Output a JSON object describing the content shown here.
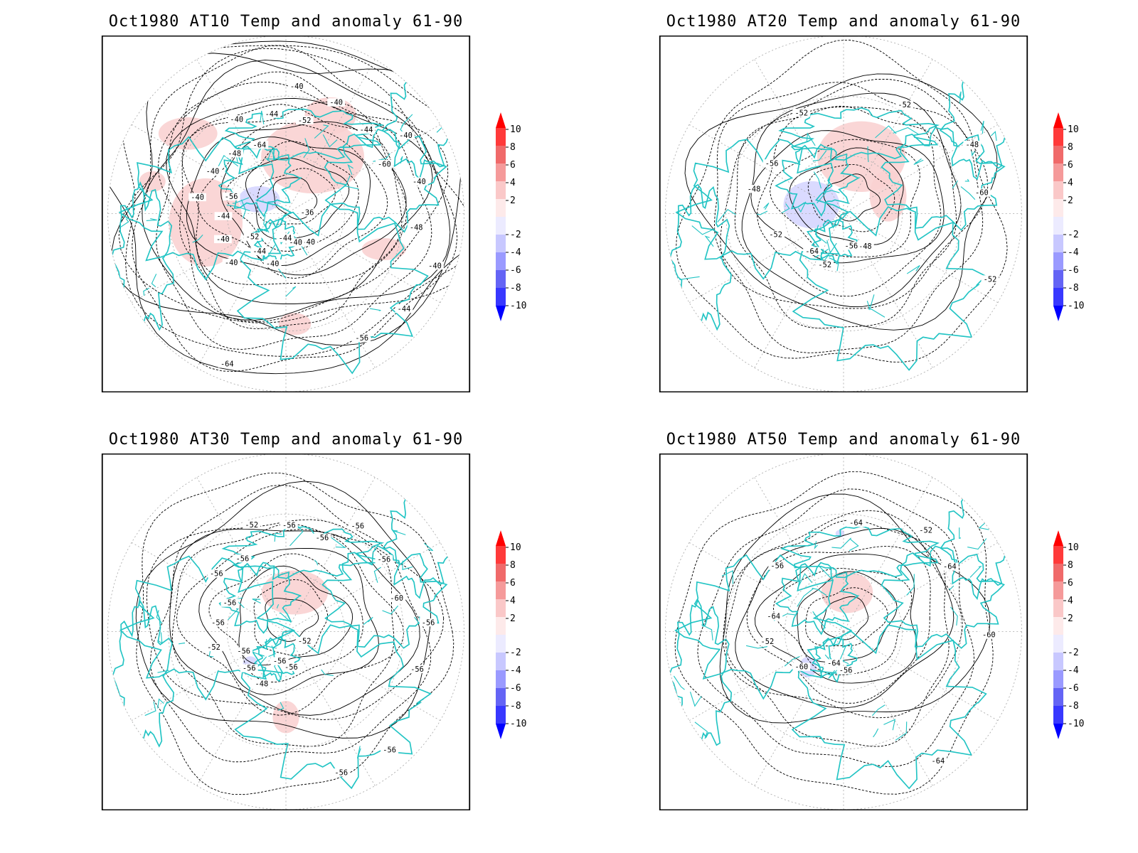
{
  "panels": [
    {
      "title": "Oct1980 AT10 Temp and anomaly 61-90",
      "contour_labels": [
        "-36",
        "-40",
        "-40",
        "-40",
        "-40",
        "-40",
        "-40",
        "-40",
        "-40",
        "-40",
        "-40",
        "-40",
        "-40",
        "-40",
        "-44",
        "-44",
        "-44",
        "-44",
        "-44",
        "-44",
        "-48",
        "-48",
        "-52",
        "-52",
        "-56",
        "-56",
        "-60",
        "-64",
        "-64"
      ],
      "pos_anomaly": [
        [
          -0.55,
          0.45,
          40,
          22
        ],
        [
          -0.45,
          -0.05,
          50,
          60
        ],
        [
          0.15,
          0.32,
          70,
          50
        ],
        [
          0.25,
          0.55,
          35,
          25
        ],
        [
          0.55,
          -0.2,
          30,
          15
        ],
        [
          0.05,
          -0.62,
          22,
          15
        ],
        [
          -0.75,
          0.18,
          18,
          14
        ]
      ],
      "neg_anomaly": [
        [
          -0.15,
          0.08,
          28,
          18
        ]
      ],
      "warm_center": [
        0.12,
        0.3
      ]
    },
    {
      "title": "Oct1980 AT20 Temp and anomaly 61-90",
      "contour_labels": [
        "-48",
        "-48",
        "-48",
        "-52",
        "-52",
        "-52",
        "-52",
        "-52",
        "-56",
        "-56",
        "-60",
        "-64"
      ],
      "pos_anomaly": [
        [
          0.1,
          0.32,
          60,
          48
        ],
        [
          0.25,
          0.1,
          25,
          35
        ]
      ],
      "neg_anomaly": [
        [
          -0.18,
          0.05,
          38,
          32
        ]
      ],
      "warm_center": [
        0.1,
        0.3
      ]
    },
    {
      "title": "Oct1980 AT30 Temp and anomaly 61-90",
      "contour_labels": [
        "-48",
        "-52",
        "-52",
        "-52",
        "-56",
        "-56",
        "-56",
        "-56",
        "-56",
        "-56",
        "-56",
        "-56",
        "-56",
        "-56",
        "-56",
        "-56",
        "-56",
        "-56",
        "-56",
        "-56",
        "-60"
      ],
      "pos_anomaly": [
        [
          0.05,
          0.22,
          45,
          30
        ],
        [
          0.0,
          -0.48,
          18,
          22
        ]
      ],
      "neg_anomaly": [
        [
          -0.2,
          -0.18,
          10,
          10
        ]
      ],
      "warm_center": [
        0.05,
        0.25
      ]
    },
    {
      "title": "Oct1980 AT50 Temp and anomaly 61-90",
      "contour_labels": [
        "-52",
        "-52",
        "-56",
        "-56",
        "-60",
        "-60",
        "-64",
        "-64",
        "-64",
        "-64",
        "-64"
      ],
      "pos_anomaly": [
        [
          0.02,
          0.22,
          35,
          28
        ]
      ],
      "neg_anomaly": [
        [
          -0.2,
          -0.2,
          12,
          14
        ],
        [
          -0.02,
          0.55,
          6,
          5
        ]
      ],
      "warm_center": [
        0.02,
        0.25
      ]
    }
  ],
  "colorbar": {
    "labels": [
      "10",
      "8",
      "6",
      "4",
      "2",
      "-2",
      "-4",
      "-6",
      "-8",
      "-10"
    ],
    "colors": [
      "#ff3a3a",
      "#f06a6a",
      "#f59a9a",
      "#fac8c8",
      "#fdeaea",
      "#ecebff",
      "#c8c8ff",
      "#9a9aff",
      "#6464f5",
      "#3838ff"
    ],
    "top_arrow_color": "#ff0000",
    "bottom_arrow_color": "#0000ff"
  },
  "colors": {
    "coast": "#22c4c4",
    "contour": "#000000",
    "grid": "#aaaaaa"
  }
}
